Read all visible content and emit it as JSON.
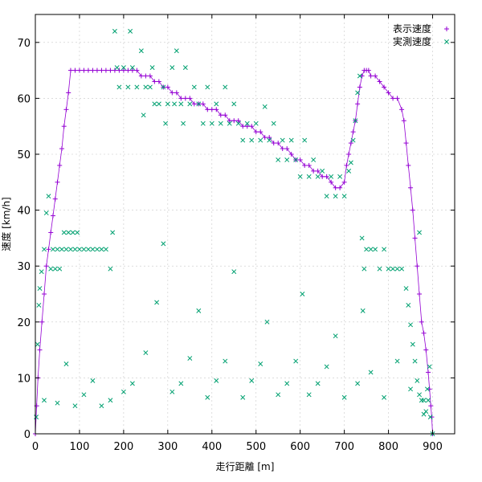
{
  "chart_data": {
    "type": "scatter",
    "title": "",
    "xlabel": "走行距離 [m]",
    "ylabel": "速度 [km/h]",
    "xlim": [
      0,
      950
    ],
    "ylim": [
      0,
      75
    ],
    "xticks": [
      0,
      100,
      200,
      300,
      400,
      500,
      600,
      700,
      800,
      900
    ],
    "yticks": [
      0,
      10,
      20,
      30,
      40,
      50,
      60,
      70
    ],
    "grid": true,
    "legend_position": "top-right",
    "series": [
      {
        "name": "表示速度",
        "marker": "+",
        "color": "#9400d3",
        "points": [
          [
            0,
            0
          ],
          [
            3,
            5
          ],
          [
            6,
            10
          ],
          [
            10,
            15
          ],
          [
            15,
            20
          ],
          [
            20,
            25
          ],
          [
            25,
            30
          ],
          [
            30,
            33
          ],
          [
            35,
            36
          ],
          [
            40,
            39
          ],
          [
            45,
            42
          ],
          [
            50,
            45
          ],
          [
            55,
            48
          ],
          [
            60,
            51
          ],
          [
            65,
            55
          ],
          [
            70,
            58
          ],
          [
            75,
            61
          ],
          [
            80,
            65
          ],
          [
            90,
            65
          ],
          [
            100,
            65
          ],
          [
            110,
            65
          ],
          [
            120,
            65
          ],
          [
            130,
            65
          ],
          [
            140,
            65
          ],
          [
            150,
            65
          ],
          [
            160,
            65
          ],
          [
            170,
            65
          ],
          [
            180,
            65
          ],
          [
            190,
            65
          ],
          [
            200,
            65
          ],
          [
            210,
            65
          ],
          [
            220,
            65
          ],
          [
            230,
            65
          ],
          [
            240,
            64
          ],
          [
            250,
            64
          ],
          [
            260,
            64
          ],
          [
            270,
            63
          ],
          [
            280,
            63
          ],
          [
            290,
            62
          ],
          [
            300,
            62
          ],
          [
            310,
            61
          ],
          [
            320,
            61
          ],
          [
            330,
            60
          ],
          [
            340,
            60
          ],
          [
            350,
            60
          ],
          [
            360,
            59
          ],
          [
            370,
            59
          ],
          [
            380,
            59
          ],
          [
            390,
            58
          ],
          [
            400,
            58
          ],
          [
            410,
            58
          ],
          [
            420,
            57
          ],
          [
            430,
            57
          ],
          [
            440,
            56
          ],
          [
            450,
            56
          ],
          [
            460,
            56
          ],
          [
            470,
            55
          ],
          [
            480,
            55
          ],
          [
            490,
            55
          ],
          [
            500,
            54
          ],
          [
            510,
            54
          ],
          [
            520,
            53
          ],
          [
            530,
            53
          ],
          [
            540,
            52
          ],
          [
            550,
            52
          ],
          [
            560,
            51
          ],
          [
            570,
            51
          ],
          [
            580,
            50
          ],
          [
            590,
            49
          ],
          [
            600,
            49
          ],
          [
            610,
            48
          ],
          [
            620,
            48
          ],
          [
            630,
            47
          ],
          [
            640,
            47
          ],
          [
            650,
            46
          ],
          [
            660,
            46
          ],
          [
            670,
            45
          ],
          [
            680,
            44
          ],
          [
            690,
            44
          ],
          [
            700,
            45
          ],
          [
            705,
            48
          ],
          [
            710,
            50
          ],
          [
            715,
            52
          ],
          [
            720,
            54
          ],
          [
            725,
            56
          ],
          [
            730,
            59
          ],
          [
            735,
            62
          ],
          [
            740,
            64
          ],
          [
            745,
            65
          ],
          [
            750,
            65
          ],
          [
            755,
            65
          ],
          [
            760,
            64
          ],
          [
            770,
            64
          ],
          [
            780,
            63
          ],
          [
            790,
            62
          ],
          [
            800,
            61
          ],
          [
            810,
            60
          ],
          [
            820,
            60
          ],
          [
            830,
            58
          ],
          [
            835,
            56
          ],
          [
            840,
            52
          ],
          [
            845,
            48
          ],
          [
            850,
            44
          ],
          [
            855,
            40
          ],
          [
            860,
            35
          ],
          [
            865,
            30
          ],
          [
            870,
            25
          ],
          [
            875,
            20
          ],
          [
            880,
            18
          ],
          [
            885,
            15
          ],
          [
            890,
            11
          ],
          [
            893,
            8
          ],
          [
            896,
            5
          ],
          [
            898,
            3
          ],
          [
            900,
            0
          ]
        ]
      },
      {
        "name": "実測速度",
        "marker": "x",
        "color": "#00a070",
        "points": [
          [
            2,
            3
          ],
          [
            5,
            16
          ],
          [
            8,
            23
          ],
          [
            10,
            26
          ],
          [
            14,
            29
          ],
          [
            20,
            33
          ],
          [
            25,
            39.5
          ],
          [
            30,
            42.5
          ],
          [
            35,
            29.5
          ],
          [
            40,
            33
          ],
          [
            45,
            29.5
          ],
          [
            50,
            33
          ],
          [
            55,
            29.5
          ],
          [
            60,
            33
          ],
          [
            65,
            36
          ],
          [
            70,
            33
          ],
          [
            75,
            36
          ],
          [
            80,
            33
          ],
          [
            85,
            36
          ],
          [
            90,
            33
          ],
          [
            95,
            36
          ],
          [
            100,
            33
          ],
          [
            110,
            33
          ],
          [
            120,
            33
          ],
          [
            130,
            33
          ],
          [
            140,
            33
          ],
          [
            150,
            33
          ],
          [
            160,
            33
          ],
          [
            170,
            29.5
          ],
          [
            175,
            36
          ],
          [
            180,
            72
          ],
          [
            185,
            65.5
          ],
          [
            190,
            62
          ],
          [
            200,
            65.5
          ],
          [
            210,
            62
          ],
          [
            215,
            72
          ],
          [
            220,
            65.5
          ],
          [
            230,
            62
          ],
          [
            240,
            68.5
          ],
          [
            245,
            57
          ],
          [
            250,
            62
          ],
          [
            260,
            62
          ],
          [
            265,
            65.5
          ],
          [
            270,
            59
          ],
          [
            280,
            59
          ],
          [
            290,
            62
          ],
          [
            295,
            55.5
          ],
          [
            300,
            59
          ],
          [
            310,
            65.5
          ],
          [
            315,
            59
          ],
          [
            320,
            68.5
          ],
          [
            330,
            59
          ],
          [
            335,
            55.5
          ],
          [
            340,
            65.5
          ],
          [
            350,
            59
          ],
          [
            360,
            62
          ],
          [
            370,
            59
          ],
          [
            380,
            55.5
          ],
          [
            390,
            62
          ],
          [
            400,
            55.5
          ],
          [
            410,
            59
          ],
          [
            420,
            55.5
          ],
          [
            430,
            62
          ],
          [
            440,
            55.5
          ],
          [
            450,
            59
          ],
          [
            460,
            55.5
          ],
          [
            470,
            52.5
          ],
          [
            480,
            55.5
          ],
          [
            490,
            52.5
          ],
          [
            500,
            55.5
          ],
          [
            510,
            52.5
          ],
          [
            520,
            58.5
          ],
          [
            530,
            52.5
          ],
          [
            540,
            55.5
          ],
          [
            550,
            49
          ],
          [
            560,
            52.5
          ],
          [
            570,
            49
          ],
          [
            580,
            52.5
          ],
          [
            590,
            49
          ],
          [
            600,
            46
          ],
          [
            610,
            52.5
          ],
          [
            620,
            46
          ],
          [
            630,
            49
          ],
          [
            640,
            46
          ],
          [
            650,
            47
          ],
          [
            660,
            42.5
          ],
          [
            670,
            46
          ],
          [
            680,
            42.5
          ],
          [
            690,
            46
          ],
          [
            700,
            42.5
          ],
          [
            710,
            47
          ],
          [
            715,
            48.5
          ],
          [
            720,
            52.5
          ],
          [
            725,
            56
          ],
          [
            730,
            61
          ],
          [
            735,
            64
          ],
          [
            740,
            35
          ],
          [
            742,
            22
          ],
          [
            745,
            29.5
          ],
          [
            750,
            33
          ],
          [
            760,
            33
          ],
          [
            770,
            33
          ],
          [
            780,
            29.5
          ],
          [
            790,
            33
          ],
          [
            800,
            29.5
          ],
          [
            810,
            29.5
          ],
          [
            820,
            29.5
          ],
          [
            830,
            29.5
          ],
          [
            840,
            26
          ],
          [
            845,
            23
          ],
          [
            850,
            19.5
          ],
          [
            855,
            16
          ],
          [
            860,
            13
          ],
          [
            865,
            9.5
          ],
          [
            870,
            7
          ],
          [
            875,
            6
          ],
          [
            880,
            6
          ],
          [
            885,
            4
          ],
          [
            890,
            6
          ],
          [
            895,
            3
          ],
          [
            900,
            0
          ],
          [
            20,
            6
          ],
          [
            50,
            5.5
          ],
          [
            70,
            12.5
          ],
          [
            90,
            5
          ],
          [
            110,
            7
          ],
          [
            130,
            9.5
          ],
          [
            150,
            5
          ],
          [
            170,
            6
          ],
          [
            200,
            7.5
          ],
          [
            220,
            9
          ],
          [
            250,
            14.5
          ],
          [
            275,
            23.5
          ],
          [
            290,
            34
          ],
          [
            310,
            7.5
          ],
          [
            330,
            9
          ],
          [
            350,
            13.5
          ],
          [
            370,
            22
          ],
          [
            390,
            6.5
          ],
          [
            410,
            9.5
          ],
          [
            430,
            13
          ],
          [
            450,
            29
          ],
          [
            470,
            6.5
          ],
          [
            490,
            9.5
          ],
          [
            510,
            12.5
          ],
          [
            525,
            20
          ],
          [
            550,
            7
          ],
          [
            570,
            9
          ],
          [
            590,
            13
          ],
          [
            605,
            25
          ],
          [
            620,
            7
          ],
          [
            640,
            9
          ],
          [
            660,
            12
          ],
          [
            680,
            17.5
          ],
          [
            700,
            6.5
          ],
          [
            730,
            9
          ],
          [
            760,
            11
          ],
          [
            790,
            6.5
          ],
          [
            820,
            13
          ],
          [
            850,
            8
          ],
          [
            870,
            36
          ],
          [
            880,
            3.5
          ],
          [
            888,
            8
          ],
          [
            893,
            12
          ]
        ]
      }
    ]
  }
}
